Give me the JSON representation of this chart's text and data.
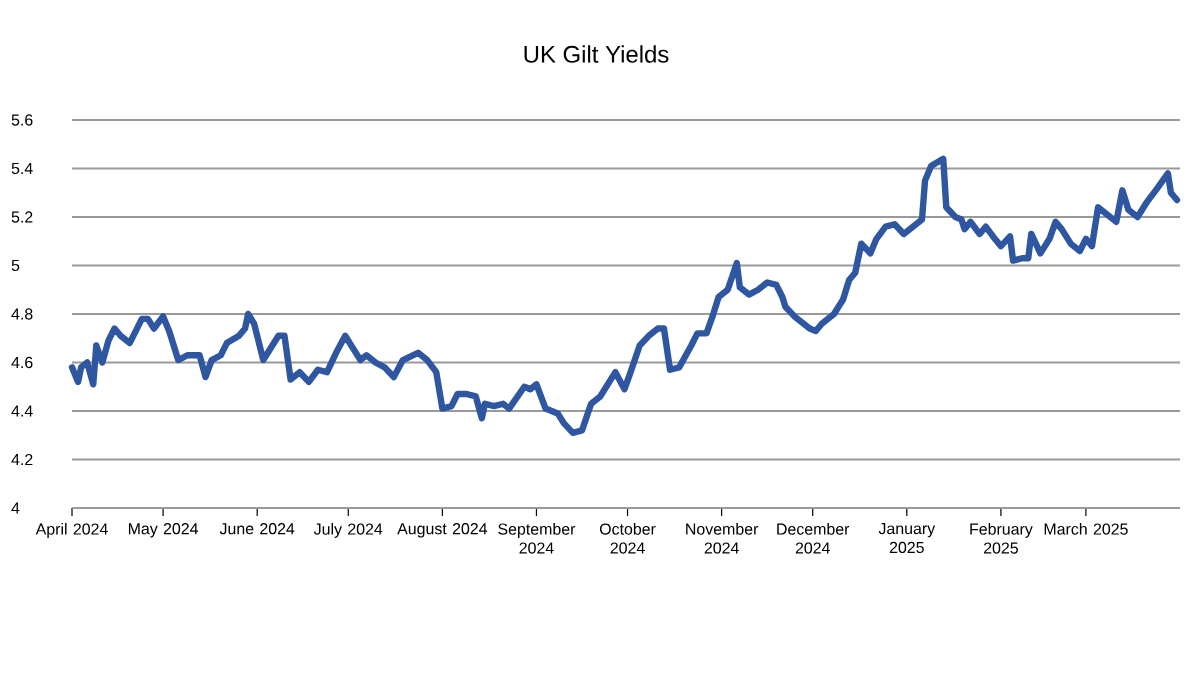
{
  "chart_data": {
    "type": "line",
    "title": "UK Gilt Yields",
    "xlim": [
      "2024-04-01",
      "2025-04-01"
    ],
    "xticks": [
      {
        "value": "2024-04-01",
        "label": "April 2024"
      },
      {
        "value": "2024-05-01",
        "label": "May 2024"
      },
      {
        "value": "2024-06-01",
        "label": "June 2024"
      },
      {
        "value": "2024-07-01",
        "label": "July 2024"
      },
      {
        "value": "2024-08-01",
        "label": "August 2024"
      },
      {
        "value": "2024-09-01",
        "label": "September 2024"
      },
      {
        "value": "2024-10-01",
        "label": "October 2024"
      },
      {
        "value": "2024-11-01",
        "label": "November 2024"
      },
      {
        "value": "2024-12-01",
        "label": "December 2024"
      },
      {
        "value": "2025-01-01",
        "label": "January 2025"
      },
      {
        "value": "2025-02-01",
        "label": "February 2025"
      },
      {
        "value": "2025-03-01",
        "label": "March 2025"
      }
    ],
    "ylim": [
      4,
      5.6
    ],
    "yticks": [
      4,
      4.2,
      4.4,
      4.6,
      4.8,
      5,
      5.2,
      5.4,
      5.6
    ],
    "grid": "y",
    "marker": "none",
    "line_style": "solid",
    "x": [
      "2024-04-01",
      "2024-04-03",
      "2024-04-04",
      "2024-04-06",
      "2024-04-08",
      "2024-04-09",
      "2024-04-11",
      "2024-04-13",
      "2024-04-15",
      "2024-04-17",
      "2024-04-20",
      "2024-04-24",
      "2024-04-26",
      "2024-04-28",
      "2024-05-01",
      "2024-05-03",
      "2024-05-06",
      "2024-05-09",
      "2024-05-13",
      "2024-05-15",
      "2024-05-17",
      "2024-05-20",
      "2024-05-22",
      "2024-05-26",
      "2024-05-28",
      "2024-05-29",
      "2024-05-31",
      "2024-06-03",
      "2024-06-06",
      "2024-06-08",
      "2024-06-10",
      "2024-06-12",
      "2024-06-15",
      "2024-06-18",
      "2024-06-21",
      "2024-06-24",
      "2024-06-27",
      "2024-06-30",
      "2024-07-03",
      "2024-07-05",
      "2024-07-07",
      "2024-07-10",
      "2024-07-13",
      "2024-07-16",
      "2024-07-19",
      "2024-07-24",
      "2024-07-27",
      "2024-07-30",
      "2024-08-01",
      "2024-08-04",
      "2024-08-06",
      "2024-08-09",
      "2024-08-12",
      "2024-08-14",
      "2024-08-15",
      "2024-08-18",
      "2024-08-21",
      "2024-08-23",
      "2024-08-28",
      "2024-08-30",
      "2024-09-01",
      "2024-09-04",
      "2024-09-08",
      "2024-09-10",
      "2024-09-13",
      "2024-09-16",
      "2024-09-19",
      "2024-09-22",
      "2024-09-25",
      "2024-09-27",
      "2024-09-30",
      "2024-10-02",
      "2024-10-05",
      "2024-10-08",
      "2024-10-11",
      "2024-10-13",
      "2024-10-15",
      "2024-10-18",
      "2024-10-22",
      "2024-10-24",
      "2024-10-27",
      "2024-10-29",
      "2024-10-31",
      "2024-11-03",
      "2024-11-06",
      "2024-11-07",
      "2024-11-10",
      "2024-11-13",
      "2024-11-16",
      "2024-11-19",
      "2024-11-21",
      "2024-11-22",
      "2024-11-25",
      "2024-11-30",
      "2024-12-02",
      "2024-12-04",
      "2024-12-08",
      "2024-12-11",
      "2024-12-13",
      "2024-12-15",
      "2024-12-17",
      "2024-12-20",
      "2024-12-22",
      "2024-12-25",
      "2024-12-28",
      "2024-12-31",
      "2025-01-03",
      "2025-01-06",
      "2025-01-07",
      "2025-01-09",
      "2025-01-13",
      "2025-01-14",
      "2025-01-17",
      "2025-01-19",
      "2025-01-20",
      "2025-01-22",
      "2025-01-25",
      "2025-01-27",
      "2025-01-30",
      "2025-02-01",
      "2025-02-04",
      "2025-02-05",
      "2025-02-08",
      "2025-02-10",
      "2025-02-11",
      "2025-02-14",
      "2025-02-17",
      "2025-02-19",
      "2025-02-21",
      "2025-02-24",
      "2025-02-27",
      "2025-03-01",
      "2025-03-03",
      "2025-03-05",
      "2025-03-09",
      "2025-03-11",
      "2025-03-13",
      "2025-03-15",
      "2025-03-18",
      "2025-03-21",
      "2025-03-24",
      "2025-03-28",
      "2025-03-29",
      "2025-03-31"
    ],
    "series": [
      {
        "color": "#2f56a0",
        "values": [
          4.58,
          4.52,
          4.58,
          4.6,
          4.51,
          4.67,
          4.6,
          4.69,
          4.74,
          4.71,
          4.68,
          4.78,
          4.78,
          4.74,
          4.79,
          4.73,
          4.61,
          4.63,
          4.63,
          4.54,
          4.61,
          4.63,
          4.68,
          4.71,
          4.74,
          4.8,
          4.76,
          4.61,
          4.67,
          4.71,
          4.71,
          4.53,
          4.56,
          4.52,
          4.57,
          4.56,
          4.64,
          4.71,
          4.65,
          4.61,
          4.63,
          4.6,
          4.58,
          4.54,
          4.61,
          4.64,
          4.61,
          4.56,
          4.41,
          4.42,
          4.47,
          4.47,
          4.46,
          4.37,
          4.43,
          4.42,
          4.43,
          4.41,
          4.5,
          4.49,
          4.51,
          4.41,
          4.39,
          4.35,
          4.31,
          4.32,
          4.43,
          4.46,
          4.52,
          4.56,
          4.49,
          4.56,
          4.67,
          4.71,
          4.74,
          4.74,
          4.57,
          4.58,
          4.67,
          4.72,
          4.72,
          4.79,
          4.87,
          4.9,
          5.01,
          4.91,
          4.88,
          4.9,
          4.93,
          4.92,
          4.87,
          4.83,
          4.79,
          4.74,
          4.73,
          4.76,
          4.8,
          4.86,
          4.94,
          4.97,
          5.09,
          5.05,
          5.11,
          5.16,
          5.17,
          5.13,
          5.16,
          5.19,
          5.35,
          5.41,
          5.44,
          5.24,
          5.2,
          5.19,
          5.15,
          5.18,
          5.13,
          5.16,
          5.11,
          5.08,
          5.12,
          5.02,
          5.03,
          5.03,
          5.13,
          5.05,
          5.11,
          5.18,
          5.15,
          5.09,
          5.06,
          5.11,
          5.08,
          5.24,
          5.2,
          5.18,
          5.31,
          5.23,
          5.2,
          5.26,
          5.31,
          5.38,
          5.3,
          5.27
        ]
      }
    ]
  }
}
